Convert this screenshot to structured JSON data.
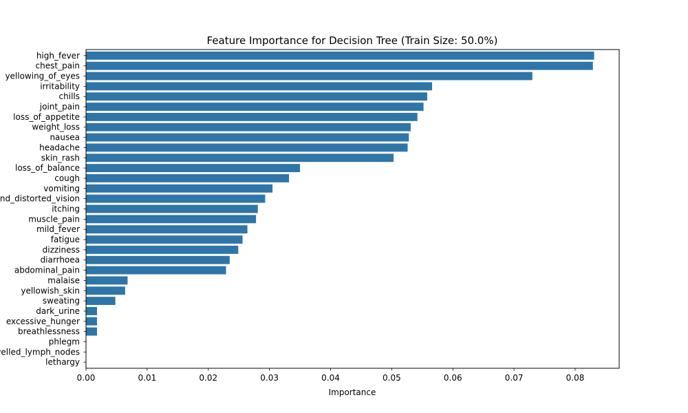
{
  "chart_data": {
    "type": "bar",
    "orientation": "horizontal",
    "title": "Feature Importance for Decision Tree (Train Size: 50.0%)",
    "xlabel": "Importance",
    "ylabel": "",
    "bar_color": "#2f75a8",
    "xlim": [
      0,
      0.0872
    ],
    "grid": false,
    "xticks": [
      0.0,
      0.01,
      0.02,
      0.03,
      0.04,
      0.05,
      0.06,
      0.07,
      0.08
    ],
    "xtick_labels": [
      "0.00",
      "0.01",
      "0.02",
      "0.03",
      "0.04",
      "0.05",
      "0.06",
      "0.07",
      "0.08"
    ],
    "categories": [
      "high_fever",
      "chest_pain",
      "yellowing_of_eyes",
      "irritability",
      "chills",
      "joint_pain",
      "loss_of_appetite",
      "weight_loss",
      "nausea",
      "headache",
      "skin_rash",
      "loss_of_balance",
      "cough",
      "vomiting",
      "blurred_and_distorted_vision",
      "itching",
      "muscle_pain",
      "mild_fever",
      "fatigue",
      "dizziness",
      "diarrhoea",
      "abdominal_pain",
      "malaise",
      "yellowish_skin",
      "sweating",
      "dark_urine",
      "excessive_hunger",
      "breathlessness",
      "phlegm",
      "swelled_lymph_nodes",
      "lethargy"
    ],
    "values": [
      0.0831,
      0.0829,
      0.073,
      0.0566,
      0.0558,
      0.0552,
      0.0542,
      0.0531,
      0.0528,
      0.0526,
      0.0503,
      0.035,
      0.0332,
      0.0305,
      0.0293,
      0.0281,
      0.0278,
      0.0264,
      0.0256,
      0.0249,
      0.0235,
      0.0229,
      0.0068,
      0.0064,
      0.0048,
      0.0018,
      0.0018,
      0.0018,
      0.0,
      0.0,
      0.0
    ]
  }
}
